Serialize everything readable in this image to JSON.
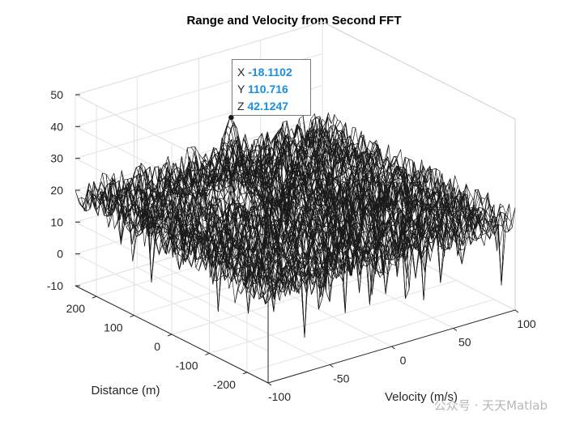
{
  "chart_data": {
    "type": "surface",
    "title": "Range and Velocity from Second FFT",
    "xlabel": "Velocity (m/s)",
    "ylabel": "Distance (m)",
    "zlabel": "",
    "x_ticks": [
      "-100",
      "-50",
      "0",
      "50",
      "100"
    ],
    "y_ticks": [
      "-200",
      "-100",
      "0",
      "100",
      "200"
    ],
    "z_ticks": [
      "-10",
      "0",
      "10",
      "20",
      "30",
      "40",
      "50"
    ],
    "xlim": [
      -100,
      100
    ],
    "ylim": [
      -256,
      256
    ],
    "zlim": [
      -10,
      50
    ],
    "noise_floor_level": 18,
    "peak": {
      "x": -18.1102,
      "y": 110.716,
      "z": 42.1247
    },
    "grid": true,
    "colormap": "parula",
    "edge_color": "#000000"
  },
  "datatip": {
    "x_label": "X",
    "x_value": "-18.1102",
    "y_label": "Y",
    "y_value": "110.716",
    "z_label": "Z",
    "z_value": "42.1247"
  },
  "watermark": "公众号 · 天天Matlab"
}
